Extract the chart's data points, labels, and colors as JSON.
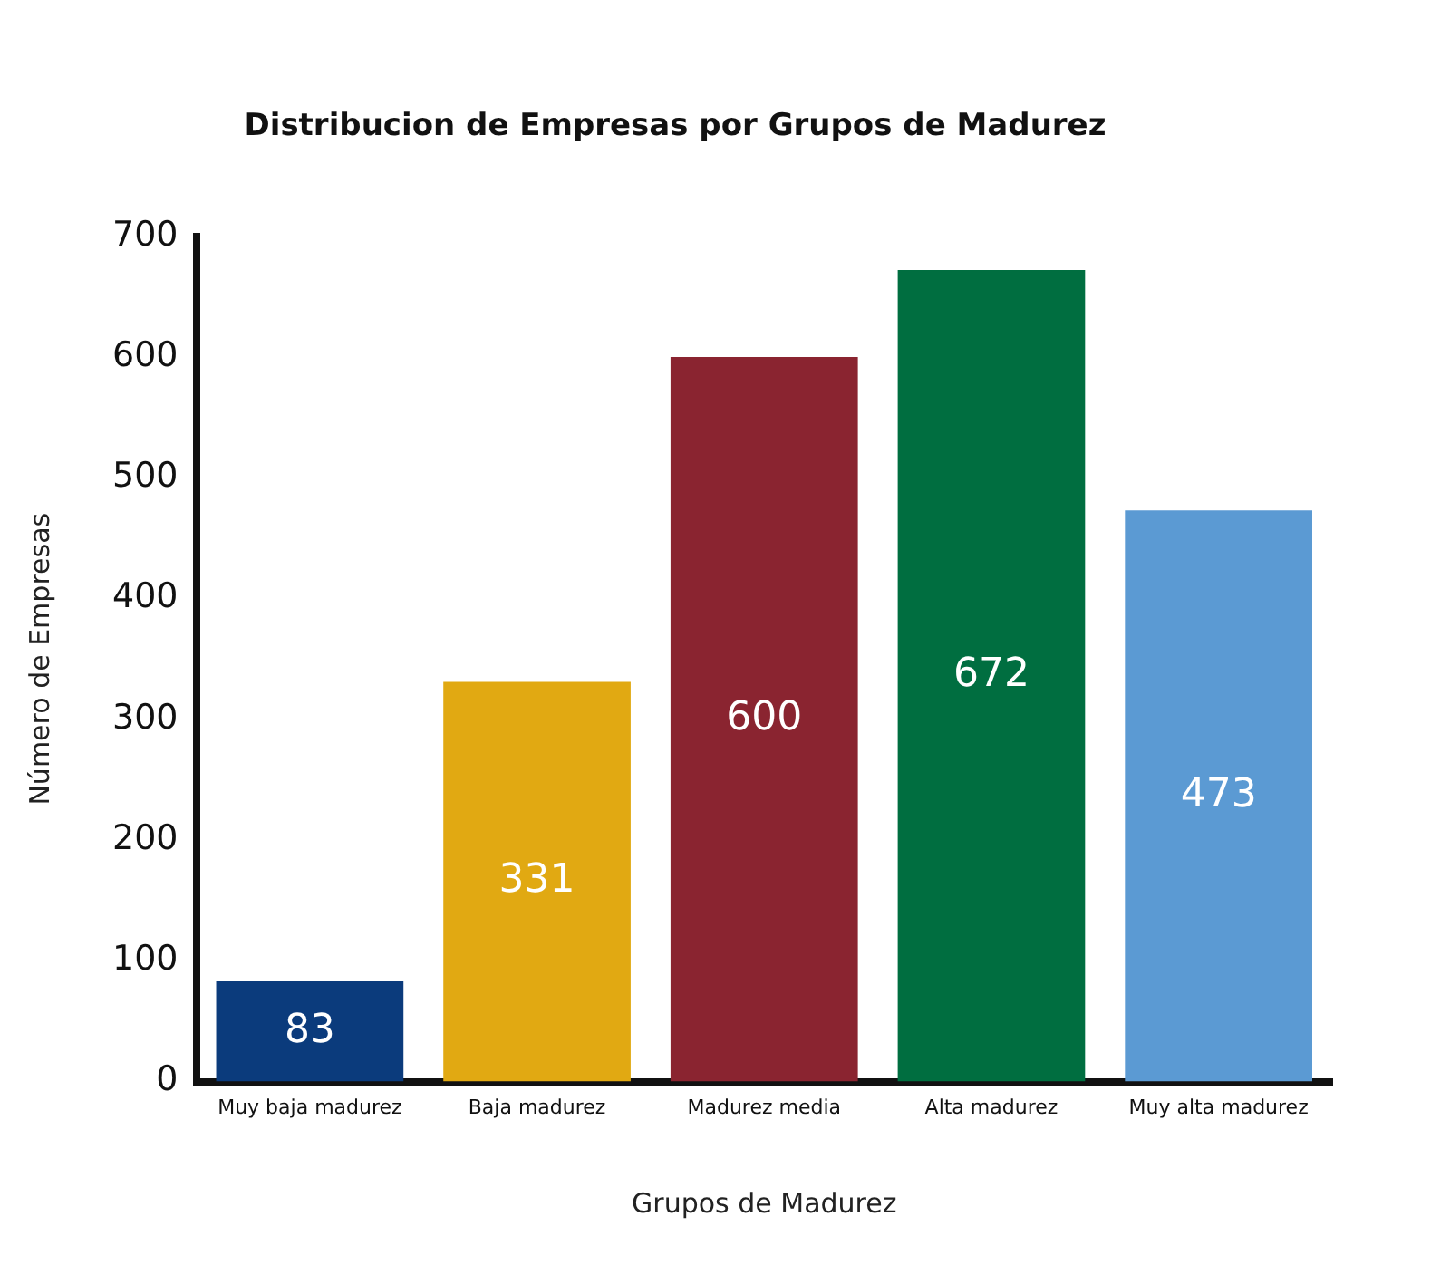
{
  "chart_data": {
    "type": "bar",
    "title": "Distribucion de Empresas por Grupos de Madurez",
    "xlabel": "Grupos de Madurez",
    "ylabel": "Número de Empresas",
    "categories": [
      "Muy baja madurez",
      "Baja madurez",
      "Madurez media",
      "Alta madurez",
      "Muy alta madurez"
    ],
    "values": [
      83,
      331,
      600,
      672,
      473
    ],
    "colors": [
      "#0b3b7c",
      "#e1a912",
      "#8a2430",
      "#006e40",
      "#5b9ad3"
    ],
    "ylim": [
      0,
      700
    ],
    "yticks": [
      0,
      100,
      200,
      300,
      400,
      500,
      600,
      700
    ],
    "grid": false,
    "legend": false,
    "data_labels": true
  }
}
